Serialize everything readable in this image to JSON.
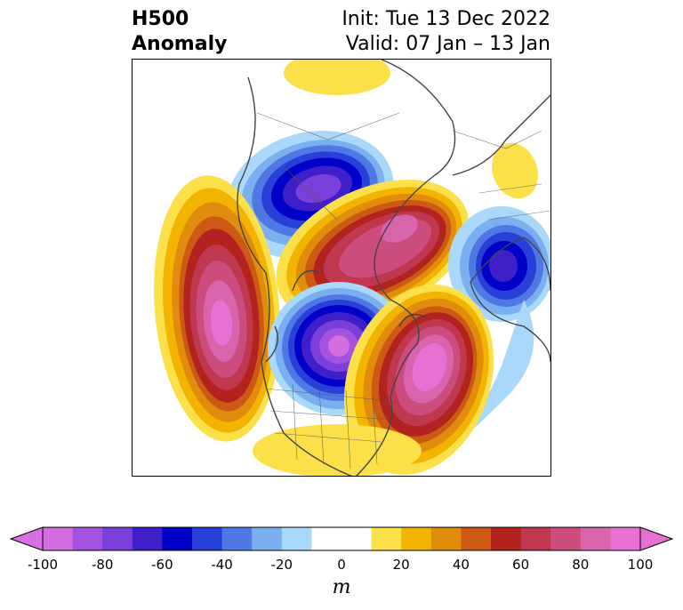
{
  "header": {
    "title_line1": "H500",
    "title_line2": "Anomaly",
    "init_text": "Init: Tue 13 Dec 2022",
    "valid_text": "Valid: 07 Jan – 13 Jan"
  },
  "map": {
    "projection": "polar-stereographic",
    "region": "North America / North Pacific / North Atlantic",
    "field": "500 hPa geopotential height anomaly"
  },
  "colorbar": {
    "unit": "m",
    "extend": "both",
    "boundaries": [
      -100,
      -90,
      -80,
      -70,
      -60,
      -50,
      -40,
      -30,
      -20,
      -10,
      10,
      20,
      30,
      40,
      50,
      60,
      70,
      80,
      90,
      100
    ],
    "colors": [
      "#d46de0",
      "#a353e0",
      "#7a3fd8",
      "#3f1fc8",
      "#0000c8",
      "#2640d8",
      "#5078e4",
      "#7ab0f0",
      "#aad8fa",
      "#ffffff",
      "#fbe04a",
      "#f2b400",
      "#e08c0c",
      "#cc5a14",
      "#b2221e",
      "#c03850",
      "#cc4c7e",
      "#d864ac",
      "#e870d4"
    ],
    "under_color": "#d870e4",
    "over_color": "#e870d4",
    "tick_values": [
      "-100",
      "-80",
      "-60",
      "-40",
      "-20",
      "0",
      "20",
      "40",
      "60",
      "80",
      "100"
    ]
  }
}
